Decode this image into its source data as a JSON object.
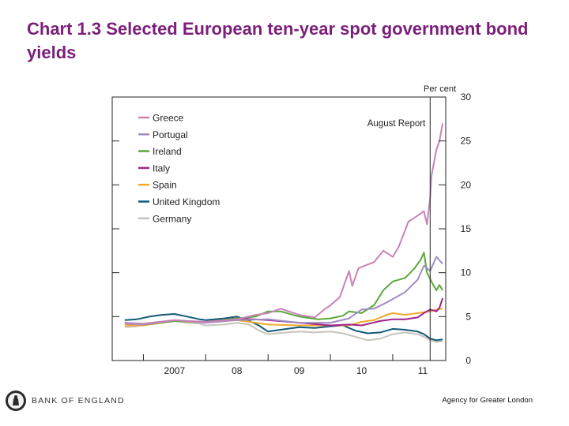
{
  "slide": {
    "title": "Chart 1.3 Selected European ten-year spot government bond yields",
    "footer_logo_text": "BANK OF ENGLAND",
    "footer_right": "Agency for Greater London"
  },
  "colors": {
    "title": "#7b1f7a",
    "Greece": "#c883b8",
    "Portugal": "#a08cc4",
    "Ireland": "#5aa83a",
    "Italy": "#a0248c",
    "Spain": "#f2a92c",
    "United Kingdom": "#115a78",
    "Germany": "#c8c4bc"
  },
  "chart_data": {
    "type": "line",
    "title": "Chart 1.3 Selected European ten-year spot government bond yields",
    "ylabel": "Per cent",
    "xlabel": "",
    "ylim": [
      0,
      30
    ],
    "xlim": [
      2006.5,
      2011.85
    ],
    "y_ticks": [
      0,
      5,
      10,
      15,
      20,
      25,
      30
    ],
    "x_ticks": [
      {
        "value": 2007.0,
        "label": "2007"
      },
      {
        "value": 2008.0,
        "label": "08"
      },
      {
        "value": 2009.0,
        "label": "09"
      },
      {
        "value": 2010.0,
        "label": "10"
      },
      {
        "value": 2011.0,
        "label": "11"
      }
    ],
    "legend_position": "top-left",
    "annotations": [
      {
        "type": "vertical-line",
        "x": 2011.6,
        "label": "August Report"
      }
    ],
    "series": [
      {
        "name": "Greece",
        "x": [
          2006.7,
          2007.0,
          2007.5,
          2008.0,
          2008.5,
          2008.8,
          2009.0,
          2009.2,
          2009.5,
          2009.75,
          2009.9,
          2010.0,
          2010.15,
          2010.3,
          2010.35,
          2010.45,
          2010.55,
          2010.7,
          2010.85,
          2011.0,
          2011.1,
          2011.25,
          2011.4,
          2011.5,
          2011.55,
          2011.6,
          2011.62,
          2011.7,
          2011.75,
          2011.8
        ],
        "values": [
          4.3,
          4.2,
          4.6,
          4.4,
          4.7,
          5.2,
          5.4,
          5.9,
          5.2,
          4.9,
          5.8,
          6.3,
          7.2,
          10.2,
          8.5,
          10.5,
          10.8,
          11.2,
          12.5,
          11.8,
          13.0,
          15.8,
          16.5,
          17.0,
          15.5,
          18.5,
          21.0,
          24.0,
          25.0,
          27.0
        ]
      },
      {
        "name": "Portugal",
        "x": [
          2006.7,
          2007.0,
          2007.5,
          2008.0,
          2008.5,
          2009.0,
          2009.5,
          2010.0,
          2010.3,
          2010.5,
          2010.7,
          2010.9,
          2011.0,
          2011.2,
          2011.4,
          2011.5,
          2011.6,
          2011.7,
          2011.8
        ],
        "values": [
          4.2,
          4.1,
          4.6,
          4.3,
          4.6,
          4.7,
          4.3,
          4.3,
          4.8,
          5.8,
          5.9,
          6.6,
          7.0,
          7.8,
          9.2,
          10.8,
          10.2,
          11.8,
          11.0
        ]
      },
      {
        "name": "Ireland",
        "x": [
          2006.7,
          2007.0,
          2007.5,
          2008.0,
          2008.5,
          2008.8,
          2009.0,
          2009.2,
          2009.5,
          2009.8,
          2010.0,
          2010.2,
          2010.3,
          2010.5,
          2010.7,
          2010.85,
          2011.0,
          2011.2,
          2011.35,
          2011.45,
          2011.5,
          2011.55,
          2011.65,
          2011.7,
          2011.75,
          2011.8
        ],
        "values": [
          4.3,
          4.1,
          4.5,
          4.4,
          4.8,
          5.0,
          5.6,
          5.6,
          5.0,
          4.7,
          4.8,
          5.1,
          5.6,
          5.4,
          6.3,
          8.0,
          9.0,
          9.4,
          10.5,
          11.5,
          12.3,
          10.0,
          8.6,
          8.0,
          8.6,
          8.0
        ]
      },
      {
        "name": "Italy",
        "x": [
          2006.7,
          2007.0,
          2007.5,
          2008.0,
          2008.5,
          2009.0,
          2009.5,
          2010.0,
          2010.3,
          2010.5,
          2010.8,
          2011.0,
          2011.2,
          2011.4,
          2011.5,
          2011.6,
          2011.7,
          2011.75,
          2011.8
        ],
        "values": [
          4.3,
          4.1,
          4.5,
          4.4,
          4.8,
          4.6,
          4.3,
          4.0,
          4.1,
          4.0,
          4.5,
          4.7,
          4.7,
          4.9,
          5.4,
          5.8,
          5.6,
          6.0,
          7.1
        ]
      },
      {
        "name": "Spain",
        "x": [
          2006.7,
          2007.0,
          2007.5,
          2008.0,
          2008.5,
          2009.0,
          2009.5,
          2010.0,
          2010.3,
          2010.5,
          2010.7,
          2010.9,
          2011.0,
          2011.2,
          2011.4,
          2011.5,
          2011.6,
          2011.7,
          2011.8
        ],
        "values": [
          4.0,
          4.0,
          4.5,
          4.3,
          4.6,
          4.1,
          4.0,
          4.0,
          4.0,
          4.4,
          4.6,
          5.2,
          5.4,
          5.2,
          5.4,
          5.5,
          5.6,
          5.8,
          5.9
        ]
      },
      {
        "name": "United Kingdom",
        "x": [
          2006.7,
          2006.9,
          2007.1,
          2007.3,
          2007.5,
          2007.7,
          2007.9,
          2008.0,
          2008.3,
          2008.5,
          2008.7,
          2008.85,
          2009.0,
          2009.3,
          2009.5,
          2009.75,
          2010.0,
          2010.2,
          2010.4,
          2010.6,
          2010.8,
          2011.0,
          2011.2,
          2011.4,
          2011.5,
          2011.6,
          2011.7,
          2011.8
        ],
        "values": [
          4.6,
          4.7,
          5.0,
          5.2,
          5.3,
          5.0,
          4.7,
          4.6,
          4.8,
          5.0,
          4.5,
          4.0,
          3.3,
          3.6,
          3.8,
          3.7,
          3.9,
          4.0,
          3.4,
          3.1,
          3.2,
          3.6,
          3.5,
          3.3,
          3.0,
          2.5,
          2.3,
          2.4
        ]
      },
      {
        "name": "Germany",
        "x": [
          2006.7,
          2006.9,
          2007.1,
          2007.3,
          2007.5,
          2007.7,
          2007.9,
          2008.0,
          2008.3,
          2008.5,
          2008.7,
          2008.85,
          2009.0,
          2009.3,
          2009.5,
          2009.75,
          2010.0,
          2010.2,
          2010.4,
          2010.6,
          2010.8,
          2011.0,
          2011.2,
          2011.4,
          2011.5,
          2011.6,
          2011.7,
          2011.8
        ],
        "values": [
          3.8,
          3.9,
          4.2,
          4.3,
          4.5,
          4.3,
          4.2,
          4.0,
          4.1,
          4.3,
          4.1,
          3.4,
          3.0,
          3.2,
          3.3,
          3.2,
          3.3,
          3.1,
          2.7,
          2.3,
          2.5,
          3.0,
          3.2,
          3.0,
          2.7,
          2.3,
          2.1,
          2.2
        ]
      }
    ]
  }
}
